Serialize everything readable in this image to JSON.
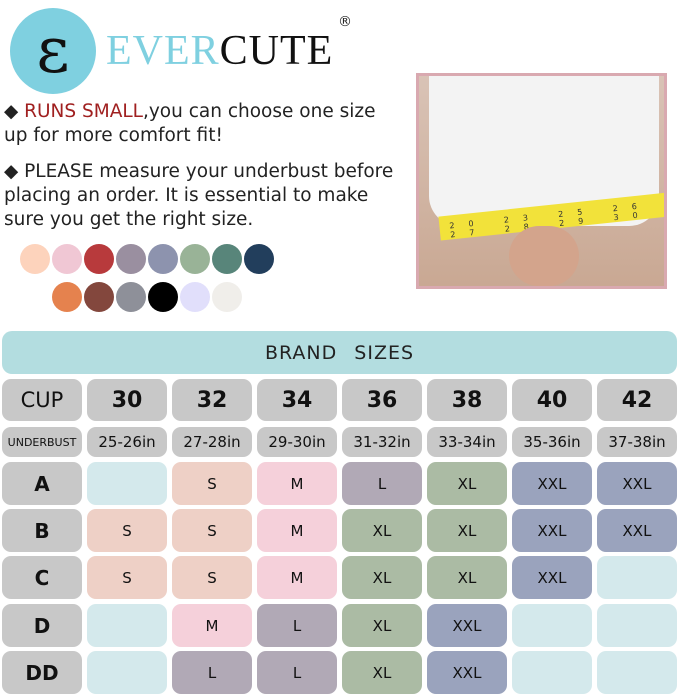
{
  "brand": {
    "logo_letter": "ε",
    "name_part1": "EVER",
    "name_part2": "CUTE",
    "registered": "®"
  },
  "notes": [
    {
      "bullet": "◆",
      "highlight": "RUNS SMALL",
      "text": ",you can choose one size up for more comfort fit!"
    },
    {
      "bullet": "◆",
      "highlight": "",
      "text": "PLEASE measure your underbust before placing an order. It is essential to make sure you get the right size."
    }
  ],
  "color_swatches": [
    "#fdd3bc",
    "#f0c7d4",
    "#b83a3c",
    "#9a8fa0",
    "#8d93ae",
    "#99b397",
    "#58857a",
    "#223e5c",
    "#e5824e",
    "#83473d",
    "#8e9099",
    "#000000",
    "#e1dffb",
    "#f0eeea"
  ],
  "photo": {
    "tape_numbers": "20 23 25 26 27 28 29 30"
  },
  "size_chart": {
    "title": "BRAND SIZES",
    "cup_header": "CUP",
    "underbust_header": "UNDERBUST",
    "band_sizes": [
      "30",
      "32",
      "34",
      "36",
      "38",
      "40",
      "42"
    ],
    "underbust": [
      "25-26in",
      "27-28in",
      "29-30in",
      "31-32in",
      "33-34in",
      "35-36in",
      "37-38in"
    ],
    "rows": [
      {
        "cup": "A",
        "sizes": [
          "",
          "S",
          "M",
          "L",
          "XL",
          "XXL",
          "XXL"
        ]
      },
      {
        "cup": "B",
        "sizes": [
          "S",
          "S",
          "M",
          "XL",
          "XL",
          "XXL",
          "XXL"
        ]
      },
      {
        "cup": "C",
        "sizes": [
          "S",
          "S",
          "M",
          "XL",
          "XL",
          "XXL",
          ""
        ]
      },
      {
        "cup": "D",
        "sizes": [
          "",
          "M",
          "L",
          "XL",
          "XXL",
          "",
          ""
        ]
      },
      {
        "cup": "DD",
        "sizes": [
          "",
          "L",
          "L",
          "XL",
          "XXL",
          "",
          ""
        ]
      }
    ],
    "colors": {
      "header": "#c8c8c8",
      "empty": "#d4e9ec",
      "S": "#eed0c6",
      "M": "#f5d0da",
      "L": "#b1a9b6",
      "XL": "#abbba4",
      "XXL": "#9aa3bd",
      "banner": "#b3dde0"
    }
  }
}
